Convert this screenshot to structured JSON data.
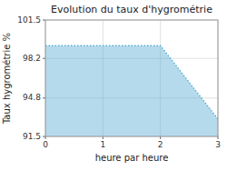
{
  "chart_data": {
    "type": "area",
    "title": "Evolution du taux d'hygrométrie",
    "x_label": "heure par heure",
    "y_label": "Taux hygrométrie %",
    "x": [
      0,
      1,
      2,
      3
    ],
    "values": [
      99.3,
      99.3,
      99.3,
      93.0
    ],
    "xlim": [
      0,
      3
    ],
    "ylim": [
      91.5,
      101.5
    ],
    "xticks": [
      0,
      1,
      2,
      3
    ],
    "yticks": [
      91.5,
      94.8,
      98.2,
      101.5
    ],
    "color": "#5bacd4",
    "line_style": "dotted",
    "grid": true
  }
}
